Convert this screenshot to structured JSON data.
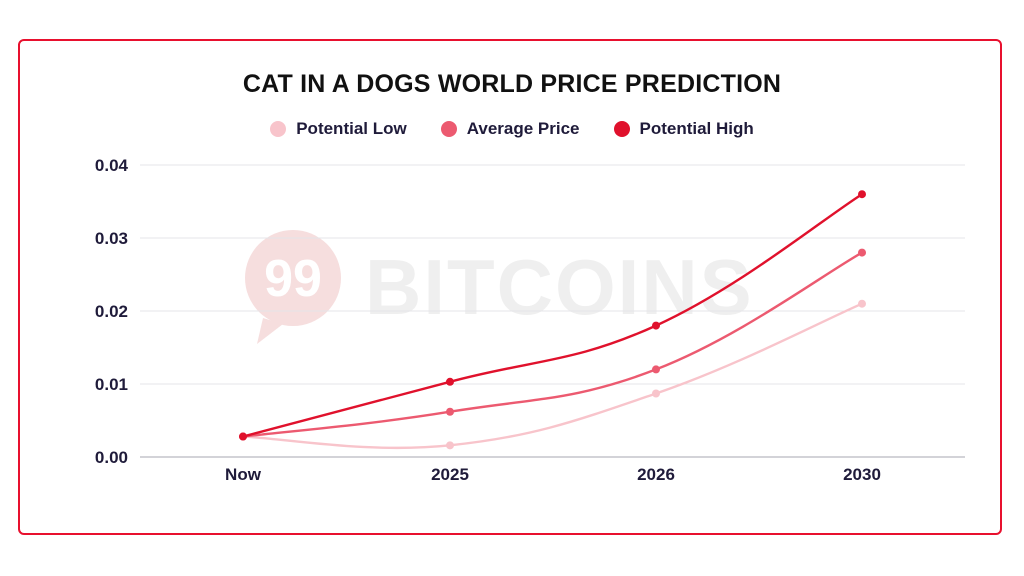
{
  "chart_data": {
    "type": "line",
    "title": "CAT IN A DOGS WORLD PRICE PREDICTION",
    "categories": [
      "Now",
      "2025",
      "2026",
      "2030"
    ],
    "series": [
      {
        "name": "Potential Low",
        "color": "#f8c4cb",
        "values": [
          0.0028,
          0.0016,
          0.0087,
          0.021
        ]
      },
      {
        "name": "Average Price",
        "color": "#ec5a70",
        "values": [
          0.0028,
          0.0062,
          0.012,
          0.028
        ]
      },
      {
        "name": "Potential High",
        "color": "#e0112c",
        "values": [
          0.0028,
          0.0103,
          0.018,
          0.036
        ]
      }
    ],
    "yticks": [
      "0.00",
      "0.01",
      "0.02",
      "0.03",
      "0.04"
    ],
    "ylim": [
      0,
      0.04
    ],
    "grid": true,
    "legend_position": "top-center"
  },
  "watermark": {
    "text": "BITCOINS",
    "logo_text": "99",
    "color": "#f6dede"
  },
  "colors": {
    "border": "#e8102e",
    "text": "#1f1b3a"
  }
}
